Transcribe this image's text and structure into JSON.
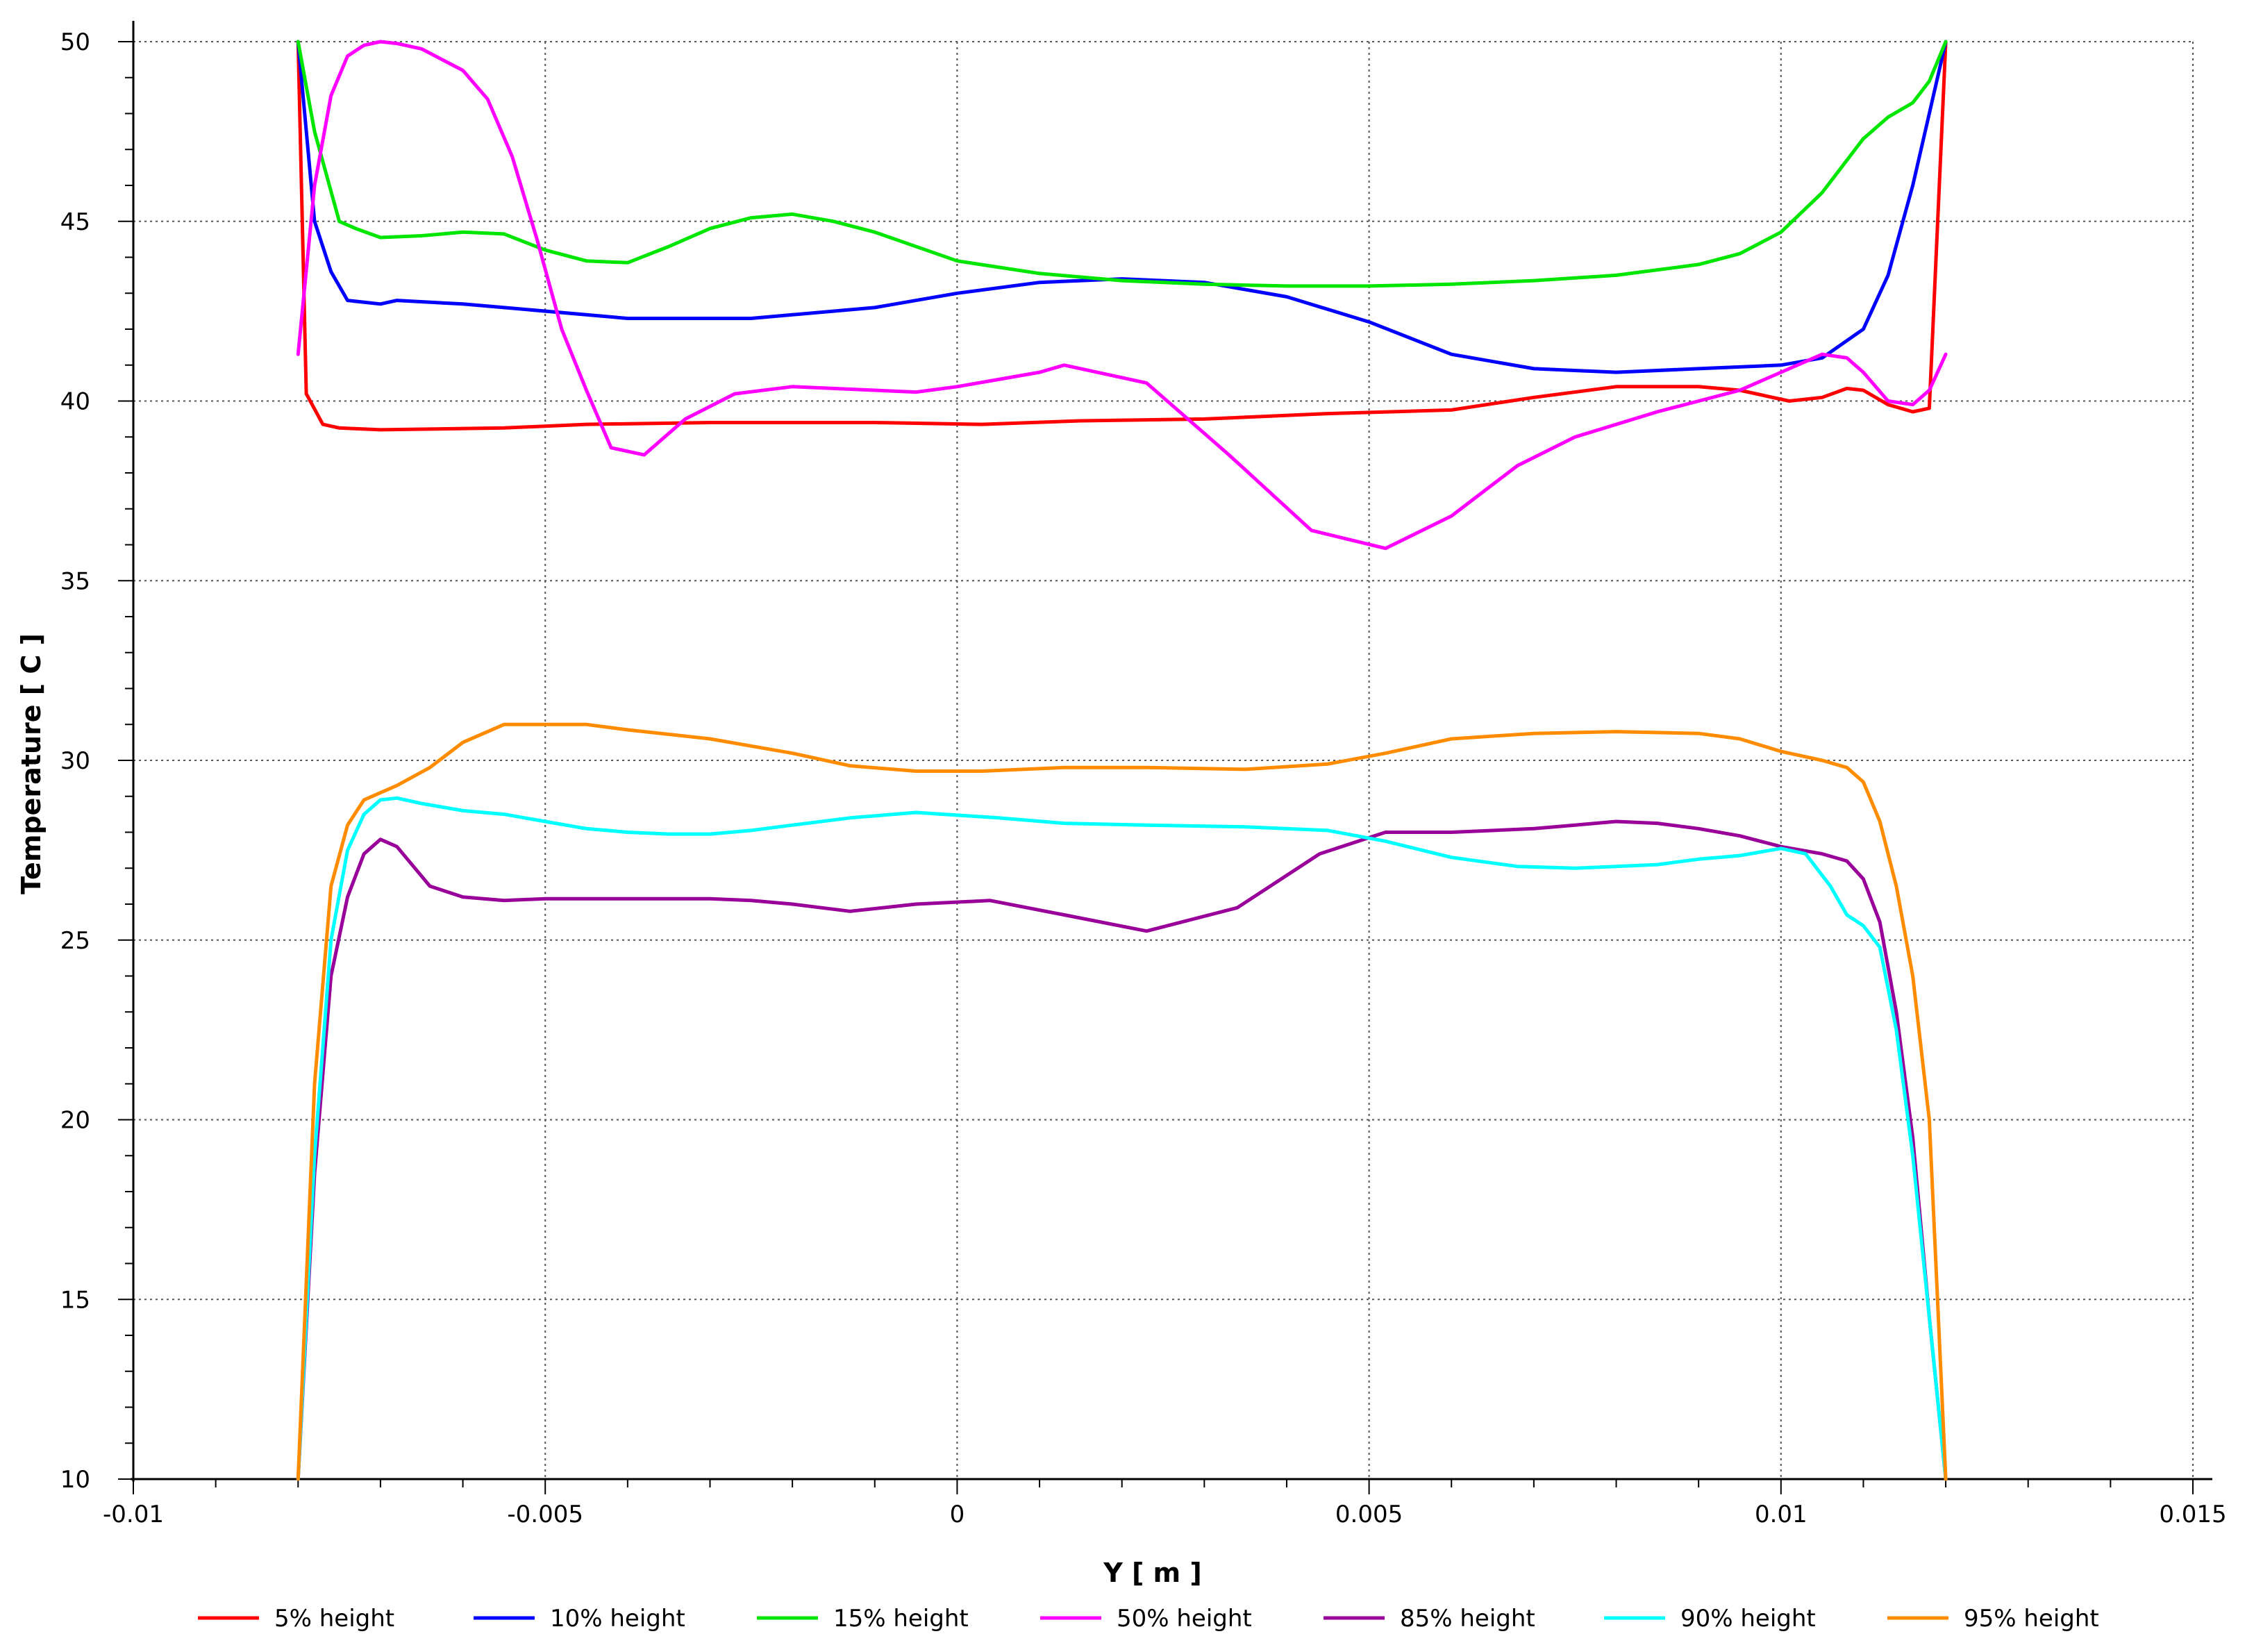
{
  "chart_data": {
    "type": "line",
    "xlabel": "Y [ m ]",
    "ylabel": "Temperature [ C ]",
    "xlim": [
      -0.01,
      0.015
    ],
    "ylim": [
      10,
      50
    ],
    "x_ticks": [
      -0.01,
      -0.005,
      0,
      0.005,
      0.01,
      0.015
    ],
    "x_tick_labels": [
      "-0.01",
      "-0.005",
      "0",
      "0.005",
      "0.01",
      "0.015"
    ],
    "y_ticks": [
      10,
      15,
      20,
      25,
      30,
      35,
      40,
      45,
      50
    ],
    "y_tick_labels": [
      "10",
      "15",
      "20",
      "25",
      "30",
      "35",
      "40",
      "45",
      "50"
    ],
    "grid": true,
    "legend_position": "bottom",
    "series": [
      {
        "name": "5% height",
        "color": "#ff0000",
        "points": [
          [
            -0.008,
            50
          ],
          [
            -0.0079,
            40.2
          ],
          [
            -0.0077,
            39.35
          ],
          [
            -0.0075,
            39.25
          ],
          [
            -0.007,
            39.2
          ],
          [
            -0.0055,
            39.25
          ],
          [
            -0.0045,
            39.35
          ],
          [
            -0.003,
            39.4
          ],
          [
            -0.001,
            39.4
          ],
          [
            0.0003,
            39.35
          ],
          [
            0.0015,
            39.45
          ],
          [
            0.003,
            39.5
          ],
          [
            0.0045,
            39.65
          ],
          [
            0.006,
            39.75
          ],
          [
            0.007,
            40.1
          ],
          [
            0.008,
            40.4
          ],
          [
            0.009,
            40.4
          ],
          [
            0.0095,
            40.3
          ],
          [
            0.0101,
            40.0
          ],
          [
            0.0105,
            40.1
          ],
          [
            0.0108,
            40.35
          ],
          [
            0.011,
            40.3
          ],
          [
            0.0113,
            39.9
          ],
          [
            0.0116,
            39.7
          ],
          [
            0.0118,
            39.8
          ],
          [
            0.012,
            50
          ]
        ]
      },
      {
        "name": "10% height",
        "color": "#0000ff",
        "points": [
          [
            -0.008,
            50
          ],
          [
            -0.0078,
            45
          ],
          [
            -0.0076,
            43.6
          ],
          [
            -0.0074,
            42.8
          ],
          [
            -0.007,
            42.7
          ],
          [
            -0.0068,
            42.8
          ],
          [
            -0.006,
            42.7
          ],
          [
            -0.0055,
            42.6
          ],
          [
            -0.0045,
            42.4
          ],
          [
            -0.004,
            42.3
          ],
          [
            -0.0025,
            42.3
          ],
          [
            -0.002,
            42.4
          ],
          [
            -0.001,
            42.6
          ],
          [
            0,
            43.0
          ],
          [
            0.001,
            43.3
          ],
          [
            0.002,
            43.4
          ],
          [
            0.003,
            43.3
          ],
          [
            0.004,
            42.9
          ],
          [
            0.005,
            42.2
          ],
          [
            0.006,
            41.3
          ],
          [
            0.007,
            40.9
          ],
          [
            0.008,
            40.8
          ],
          [
            0.009,
            40.9
          ],
          [
            0.01,
            41.0
          ],
          [
            0.0105,
            41.2
          ],
          [
            0.011,
            42.0
          ],
          [
            0.0113,
            43.5
          ],
          [
            0.0116,
            46.0
          ],
          [
            0.0118,
            48.0
          ],
          [
            0.012,
            50
          ]
        ]
      },
      {
        "name": "15% height",
        "color": "#00e600",
        "points": [
          [
            -0.008,
            50
          ],
          [
            -0.0078,
            47.5
          ],
          [
            -0.0075,
            45.0
          ],
          [
            -0.0073,
            44.8
          ],
          [
            -0.007,
            44.55
          ],
          [
            -0.0065,
            44.6
          ],
          [
            -0.006,
            44.7
          ],
          [
            -0.0055,
            44.65
          ],
          [
            -0.005,
            44.2
          ],
          [
            -0.0045,
            43.9
          ],
          [
            -0.004,
            43.85
          ],
          [
            -0.0035,
            44.3
          ],
          [
            -0.003,
            44.8
          ],
          [
            -0.0025,
            45.1
          ],
          [
            -0.002,
            45.2
          ],
          [
            -0.0015,
            45.0
          ],
          [
            -0.001,
            44.7
          ],
          [
            0,
            43.9
          ],
          [
            0.001,
            43.55
          ],
          [
            0.002,
            43.35
          ],
          [
            0.003,
            43.25
          ],
          [
            0.004,
            43.2
          ],
          [
            0.005,
            43.2
          ],
          [
            0.006,
            43.25
          ],
          [
            0.007,
            43.35
          ],
          [
            0.008,
            43.5
          ],
          [
            0.009,
            43.8
          ],
          [
            0.0095,
            44.1
          ],
          [
            0.01,
            44.7
          ],
          [
            0.0105,
            45.8
          ],
          [
            0.011,
            47.3
          ],
          [
            0.0113,
            47.9
          ],
          [
            0.0116,
            48.3
          ],
          [
            0.0118,
            48.9
          ],
          [
            0.012,
            50
          ]
        ]
      },
      {
        "name": "50% height",
        "color": "#ff00ff",
        "points": [
          [
            -0.008,
            41.3
          ],
          [
            -0.0078,
            46.0
          ],
          [
            -0.0076,
            48.5
          ],
          [
            -0.0074,
            49.6
          ],
          [
            -0.0072,
            49.9
          ],
          [
            -0.007,
            50.0
          ],
          [
            -0.0068,
            49.95
          ],
          [
            -0.0065,
            49.8
          ],
          [
            -0.006,
            49.2
          ],
          [
            -0.0057,
            48.4
          ],
          [
            -0.0054,
            46.8
          ],
          [
            -0.0051,
            44.5
          ],
          [
            -0.0048,
            42.0
          ],
          [
            -0.0045,
            40.3
          ],
          [
            -0.0042,
            38.7
          ],
          [
            -0.0038,
            38.5
          ],
          [
            -0.0033,
            39.5
          ],
          [
            -0.0027,
            40.2
          ],
          [
            -0.002,
            40.4
          ],
          [
            -0.001,
            40.3
          ],
          [
            -0.0005,
            40.25
          ],
          [
            0,
            40.4
          ],
          [
            0.001,
            40.8
          ],
          [
            0.0013,
            41.0
          ],
          [
            0.0023,
            40.5
          ],
          [
            0.0033,
            38.5
          ],
          [
            0.0043,
            36.4
          ],
          [
            0.0052,
            35.9
          ],
          [
            0.006,
            36.8
          ],
          [
            0.0068,
            38.2
          ],
          [
            0.0075,
            39.0
          ],
          [
            0.0085,
            39.7
          ],
          [
            0.0095,
            40.3
          ],
          [
            0.0105,
            41.3
          ],
          [
            0.0108,
            41.2
          ],
          [
            0.011,
            40.8
          ],
          [
            0.0113,
            40.0
          ],
          [
            0.0116,
            39.9
          ],
          [
            0.0118,
            40.3
          ],
          [
            0.012,
            41.3
          ]
        ]
      },
      {
        "name": "85% height",
        "color": "#990099",
        "points": [
          [
            -0.008,
            10
          ],
          [
            -0.0078,
            18.5
          ],
          [
            -0.0076,
            24.0
          ],
          [
            -0.0074,
            26.2
          ],
          [
            -0.0072,
            27.4
          ],
          [
            -0.007,
            27.8
          ],
          [
            -0.0068,
            27.6
          ],
          [
            -0.0064,
            26.5
          ],
          [
            -0.006,
            26.2
          ],
          [
            -0.0055,
            26.1
          ],
          [
            -0.005,
            26.15
          ],
          [
            -0.0045,
            26.15
          ],
          [
            -0.004,
            26.15
          ],
          [
            -0.003,
            26.15
          ],
          [
            -0.0025,
            26.1
          ],
          [
            -0.002,
            26.0
          ],
          [
            -0.0013,
            25.8
          ],
          [
            -0.0005,
            26.0
          ],
          [
            0.0004,
            26.1
          ],
          [
            0.0013,
            25.7
          ],
          [
            0.0023,
            25.25
          ],
          [
            0.0034,
            25.9
          ],
          [
            0.0044,
            27.4
          ],
          [
            0.0052,
            28.0
          ],
          [
            0.006,
            28.0
          ],
          [
            0.007,
            28.1
          ],
          [
            0.0075,
            28.2
          ],
          [
            0.008,
            28.3
          ],
          [
            0.0085,
            28.25
          ],
          [
            0.009,
            28.1
          ],
          [
            0.0095,
            27.9
          ],
          [
            0.01,
            27.6
          ],
          [
            0.0105,
            27.4
          ],
          [
            0.0108,
            27.2
          ],
          [
            0.011,
            26.7
          ],
          [
            0.0112,
            25.5
          ],
          [
            0.0114,
            23.0
          ],
          [
            0.0116,
            19.5
          ],
          [
            0.0118,
            14.5
          ],
          [
            0.012,
            10
          ]
        ]
      },
      {
        "name": "90% height",
        "color": "#00ffff",
        "points": [
          [
            -0.008,
            10
          ],
          [
            -0.0078,
            19.0
          ],
          [
            -0.0076,
            25.0
          ],
          [
            -0.0074,
            27.5
          ],
          [
            -0.0072,
            28.5
          ],
          [
            -0.007,
            28.9
          ],
          [
            -0.0068,
            28.95
          ],
          [
            -0.0065,
            28.8
          ],
          [
            -0.006,
            28.6
          ],
          [
            -0.0055,
            28.5
          ],
          [
            -0.005,
            28.3
          ],
          [
            -0.0045,
            28.1
          ],
          [
            -0.004,
            28.0
          ],
          [
            -0.0035,
            27.95
          ],
          [
            -0.003,
            27.95
          ],
          [
            -0.0025,
            28.05
          ],
          [
            -0.002,
            28.2
          ],
          [
            -0.0013,
            28.4
          ],
          [
            -0.0005,
            28.55
          ],
          [
            0.0005,
            28.4
          ],
          [
            0.0013,
            28.25
          ],
          [
            0.0023,
            28.2
          ],
          [
            0.0035,
            28.15
          ],
          [
            0.0045,
            28.05
          ],
          [
            0.0052,
            27.75
          ],
          [
            0.006,
            27.3
          ],
          [
            0.0068,
            27.05
          ],
          [
            0.0075,
            27.0
          ],
          [
            0.0085,
            27.1
          ],
          [
            0.009,
            27.25
          ],
          [
            0.0095,
            27.35
          ],
          [
            0.01,
            27.55
          ],
          [
            0.0103,
            27.4
          ],
          [
            0.0106,
            26.5
          ],
          [
            0.0108,
            25.7
          ],
          [
            0.011,
            25.4
          ],
          [
            0.0112,
            24.8
          ],
          [
            0.0114,
            22.5
          ],
          [
            0.0116,
            19.0
          ],
          [
            0.0118,
            14.5
          ],
          [
            0.012,
            10
          ]
        ]
      },
      {
        "name": "95% height",
        "color": "#ff8c00",
        "points": [
          [
            -0.008,
            10
          ],
          [
            -0.0078,
            21.0
          ],
          [
            -0.0076,
            26.5
          ],
          [
            -0.0074,
            28.2
          ],
          [
            -0.0072,
            28.9
          ],
          [
            -0.0068,
            29.3
          ],
          [
            -0.0064,
            29.8
          ],
          [
            -0.006,
            30.5
          ],
          [
            -0.0055,
            31.0
          ],
          [
            -0.005,
            31.0
          ],
          [
            -0.0045,
            31.0
          ],
          [
            -0.004,
            30.85
          ],
          [
            -0.003,
            30.6
          ],
          [
            -0.002,
            30.2
          ],
          [
            -0.0013,
            29.85
          ],
          [
            -0.0005,
            29.7
          ],
          [
            0.0003,
            29.7
          ],
          [
            0.0013,
            29.8
          ],
          [
            0.0023,
            29.8
          ],
          [
            0.0035,
            29.75
          ],
          [
            0.0045,
            29.9
          ],
          [
            0.0052,
            30.2
          ],
          [
            0.006,
            30.6
          ],
          [
            0.007,
            30.75
          ],
          [
            0.008,
            30.8
          ],
          [
            0.009,
            30.75
          ],
          [
            0.0095,
            30.6
          ],
          [
            0.01,
            30.25
          ],
          [
            0.0105,
            30.0
          ],
          [
            0.0108,
            29.8
          ],
          [
            0.011,
            29.4
          ],
          [
            0.0112,
            28.3
          ],
          [
            0.0114,
            26.5
          ],
          [
            0.0116,
            24.0
          ],
          [
            0.0118,
            20.0
          ],
          [
            0.012,
            10
          ]
        ]
      }
    ]
  }
}
